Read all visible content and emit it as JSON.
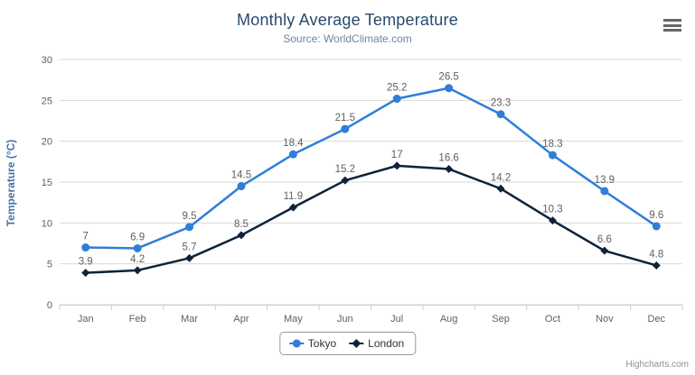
{
  "title": "Monthly Average Temperature",
  "subtitle": "Source: WorldClimate.com",
  "credits": "Highcharts.com",
  "menu_icon": "hamburger-menu-icon",
  "colors": {
    "title": "#274b6d",
    "subtitle": "#6d869f",
    "y_axis_title": "#4572a7",
    "tick_label": "#606060",
    "data_label": "#606060",
    "gridline": "#d8d8d8",
    "x_axis_line": "#c0d0e0",
    "legend_border": "#999999",
    "legend_text": "#333333",
    "credits_text": "#909090",
    "menu_bars": "#666666"
  },
  "chart_data": {
    "type": "line",
    "title": "Monthly Average Temperature",
    "subtitle": "Source: WorldClimate.com",
    "categories": [
      "Jan",
      "Feb",
      "Mar",
      "Apr",
      "May",
      "Jun",
      "Jul",
      "Aug",
      "Sep",
      "Oct",
      "Nov",
      "Dec"
    ],
    "series": [
      {
        "name": "Tokyo",
        "color": "#2f7ed8",
        "marker": "circle",
        "values": [
          7,
          6.9,
          9.5,
          14.5,
          18.4,
          21.5,
          25.2,
          26.5,
          23.3,
          18.3,
          13.9,
          9.6
        ]
      },
      {
        "name": "London",
        "color": "#0d233a",
        "marker": "diamond",
        "values": [
          3.9,
          4.2,
          5.7,
          8.5,
          11.9,
          15.2,
          17,
          16.6,
          14.2,
          10.3,
          6.6,
          4.8
        ]
      }
    ],
    "xlabel": "",
    "ylabel": "Temperature (°C)",
    "ylim": [
      0,
      30
    ],
    "yticks": [
      0,
      5,
      10,
      15,
      20,
      25,
      30
    ],
    "grid": true,
    "data_labels": true,
    "legend_position": "bottom"
  }
}
